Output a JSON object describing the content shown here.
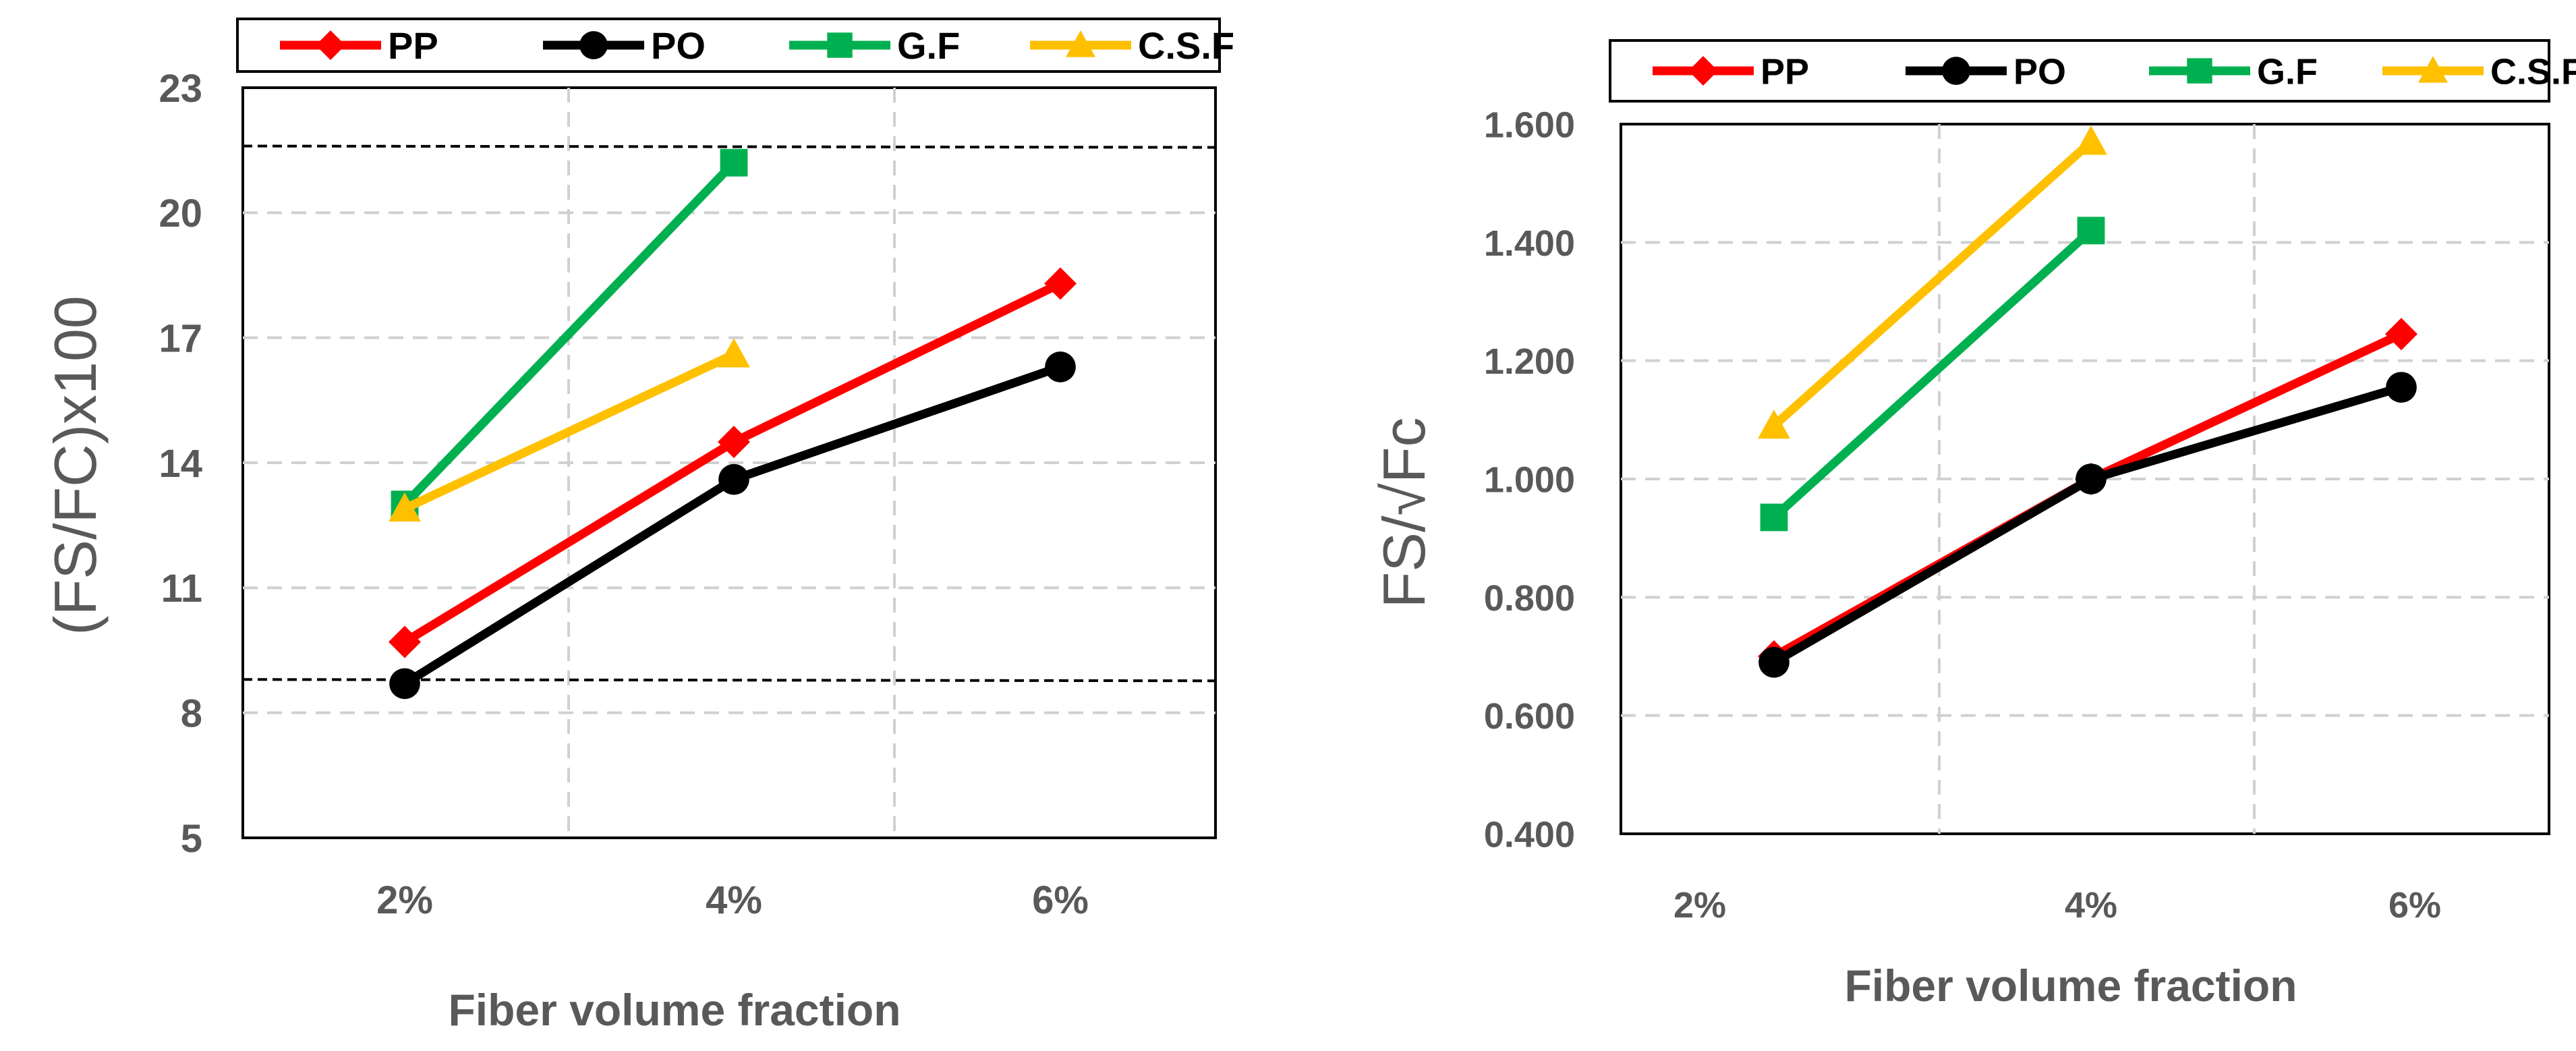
{
  "chart_data": [
    {
      "type": "line",
      "categories": [
        "2%",
        "4%",
        "6%"
      ],
      "series": [
        {
          "name": "PP",
          "values": [
            9.7,
            14.5,
            18.3
          ],
          "color": "#ff0000",
          "marker": "diamond"
        },
        {
          "name": "PO",
          "values": [
            8.7,
            13.6,
            16.3
          ],
          "color": "#000000",
          "marker": "circle"
        },
        {
          "name": "G.F",
          "values": [
            13.0,
            21.2,
            null
          ],
          "color": "#00b050",
          "marker": "square"
        },
        {
          "name": "C.S.F",
          "values": [
            12.9,
            16.6,
            null
          ],
          "color": "#ffc000",
          "marker": "triangle"
        }
      ],
      "yticks": [
        "5",
        "8",
        "11",
        "14",
        "17",
        "20",
        "23"
      ],
      "ylim": [
        5,
        23
      ],
      "xlabel": "Fiber volume fraction",
      "ylabel": "(FS/FC)x100",
      "reference_lines": [
        21.6,
        8.8
      ]
    },
    {
      "type": "line",
      "categories": [
        "2%",
        "4%",
        "6%"
      ],
      "series": [
        {
          "name": "PP",
          "values": [
            0.7,
            1.0,
            1.245
          ],
          "color": "#ff0000",
          "marker": "diamond"
        },
        {
          "name": "PO",
          "values": [
            0.69,
            1.0,
            1.155
          ],
          "color": "#000000",
          "marker": "circle"
        },
        {
          "name": "G.F",
          "values": [
            0.935,
            1.42,
            null
          ],
          "color": "#00b050",
          "marker": "square"
        },
        {
          "name": "C.S.F",
          "values": [
            1.09,
            1.57,
            null
          ],
          "color": "#ffc000",
          "marker": "triangle"
        }
      ],
      "yticks": [
        "0.400",
        "0.600",
        "0.800",
        "1.000",
        "1.200",
        "1.400",
        "1.600"
      ],
      "ylim": [
        0.4,
        1.6
      ],
      "xlabel": "Fiber volume fraction",
      "ylabel": "FS/√Fc"
    }
  ]
}
